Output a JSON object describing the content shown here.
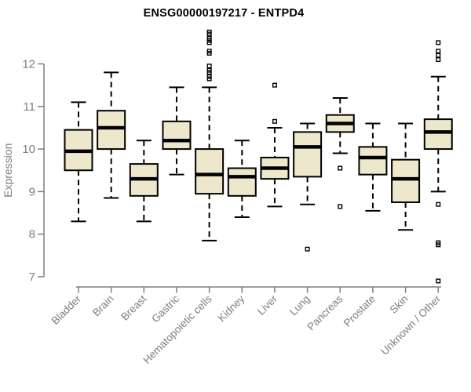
{
  "chart_data": {
    "type": "boxplot",
    "title": "ENSG00000197217 - ENTPD4",
    "ylabel": "Expression",
    "xlabel": "",
    "ylim": [
      7,
      12
    ],
    "yticks": [
      7,
      8,
      9,
      10,
      11,
      12
    ],
    "grid": false,
    "legend": "none",
    "categories": [
      "Bladder",
      "Brain",
      "Breast",
      "Gastric",
      "Hematopoietic cells",
      "Kidney",
      "Liver",
      "Lung",
      "Pancreas",
      "Prostate",
      "Skin",
      "Unknown / Other"
    ],
    "series": [
      {
        "name": "Bladder",
        "whisker_low": 8.3,
        "q1": 9.5,
        "median": 9.95,
        "q3": 10.45,
        "whisker_high": 11.1,
        "outliers": []
      },
      {
        "name": "Brain",
        "whisker_low": 8.85,
        "q1": 10.0,
        "median": 10.5,
        "q3": 10.9,
        "whisker_high": 11.8,
        "outliers": []
      },
      {
        "name": "Breast",
        "whisker_low": 8.3,
        "q1": 8.9,
        "median": 9.3,
        "q3": 9.65,
        "whisker_high": 10.2,
        "outliers": []
      },
      {
        "name": "Gastric",
        "whisker_low": 9.4,
        "q1": 10.0,
        "median": 10.2,
        "q3": 10.65,
        "whisker_high": 11.45,
        "outliers": []
      },
      {
        "name": "Hematopoietic cells",
        "whisker_low": 7.85,
        "q1": 8.95,
        "median": 9.4,
        "q3": 10.0,
        "whisker_high": 11.45,
        "outliers": [
          12.75,
          12.7,
          12.6,
          12.55,
          12.5,
          12.3,
          12.25,
          11.95,
          11.85,
          11.8,
          11.7,
          11.65
        ]
      },
      {
        "name": "Kidney",
        "whisker_low": 8.4,
        "q1": 8.9,
        "median": 9.35,
        "q3": 9.55,
        "whisker_high": 10.2,
        "outliers": []
      },
      {
        "name": "Liver",
        "whisker_low": 8.65,
        "q1": 9.3,
        "median": 9.55,
        "q3": 9.8,
        "whisker_high": 10.5,
        "outliers": [
          11.5,
          10.65
        ]
      },
      {
        "name": "Lung",
        "whisker_low": 8.7,
        "q1": 9.35,
        "median": 10.05,
        "q3": 10.4,
        "whisker_high": 10.6,
        "outliers": [
          7.65
        ]
      },
      {
        "name": "Pancreas",
        "whisker_low": 9.9,
        "q1": 10.4,
        "median": 10.6,
        "q3": 10.8,
        "whisker_high": 11.2,
        "outliers": [
          9.55,
          8.65
        ]
      },
      {
        "name": "Prostate",
        "whisker_low": 8.55,
        "q1": 9.4,
        "median": 9.8,
        "q3": 10.05,
        "whisker_high": 10.6,
        "outliers": []
      },
      {
        "name": "Skin",
        "whisker_low": 8.1,
        "q1": 8.75,
        "median": 9.3,
        "q3": 9.75,
        "whisker_high": 10.6,
        "outliers": []
      },
      {
        "name": "Unknown / Other",
        "whisker_low": 9.0,
        "q1": 10.0,
        "median": 10.4,
        "q3": 10.7,
        "whisker_high": 11.7,
        "outliers": [
          12.5,
          12.3,
          12.2,
          12.1,
          8.7,
          7.8,
          7.75,
          6.9
        ]
      }
    ],
    "colors": {
      "box_fill": "#EDE7CB",
      "box_stroke": "#000000",
      "axis": "#7E7E7E",
      "title": "#000000",
      "background": "#FFFFFF"
    }
  }
}
